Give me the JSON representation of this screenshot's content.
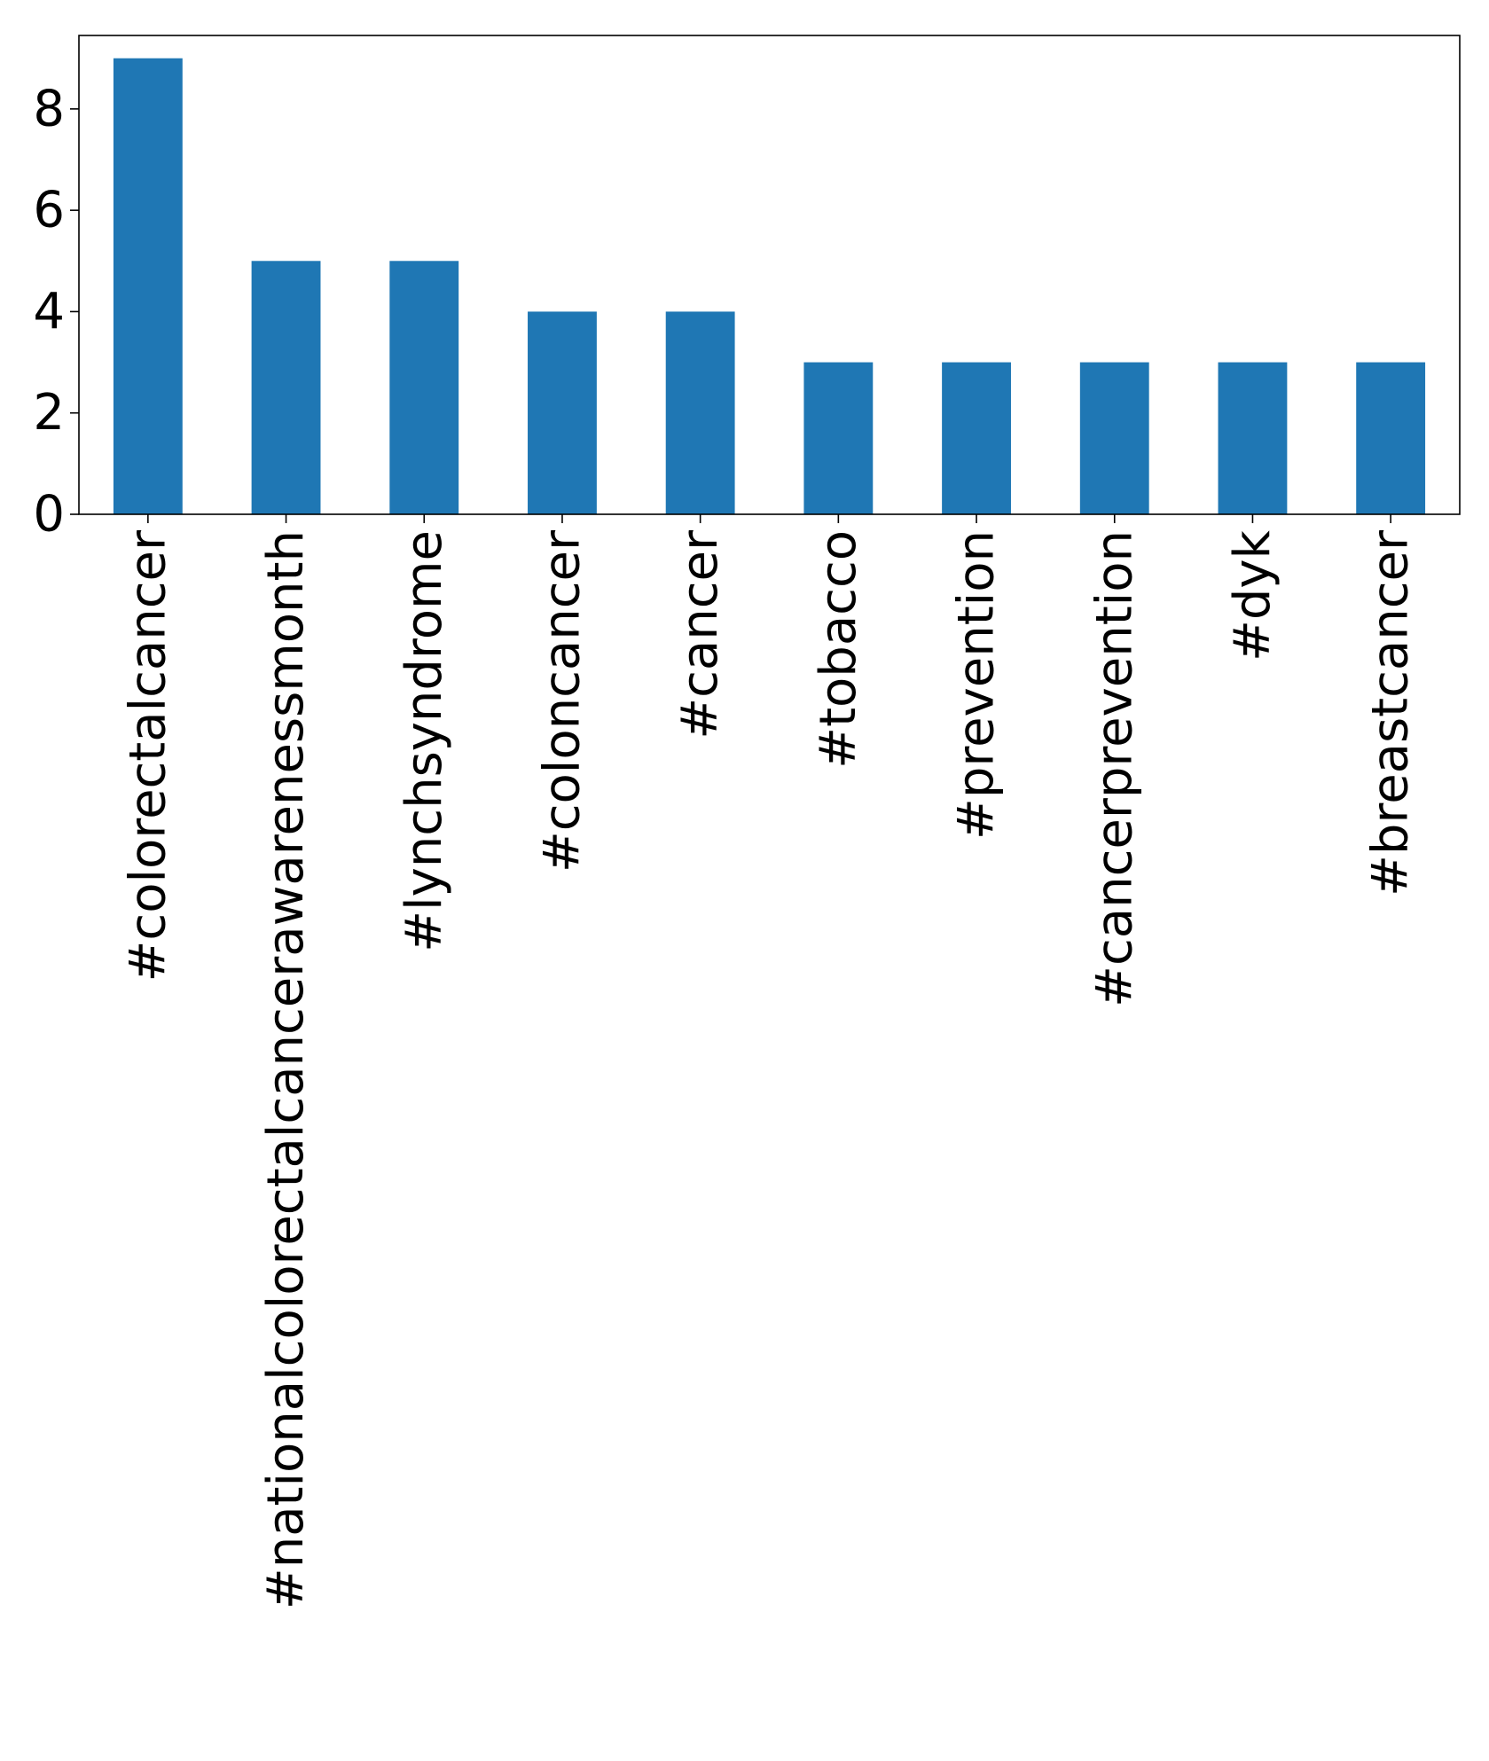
{
  "chart_data": {
    "type": "bar",
    "title": "",
    "xlabel": "",
    "ylabel": "",
    "categories": [
      "#colorectalcancer",
      "#nationalcolorectalcancerawarenessmonth",
      "#lynchsyndrome",
      "#coloncancer",
      "#cancer",
      "#tobacco",
      "#prevention",
      "#cancerprevention",
      "#dyk",
      "#breastcancer"
    ],
    "values": [
      9,
      5,
      5,
      4,
      4,
      3,
      3,
      3,
      3,
      3
    ],
    "ylim": [
      0,
      9.45
    ],
    "yticks": [
      "0",
      "2",
      "4",
      "6",
      "8"
    ],
    "grid": false,
    "legend": "none",
    "bar_color": "#1f77b4",
    "axis_color": "#000000"
  }
}
